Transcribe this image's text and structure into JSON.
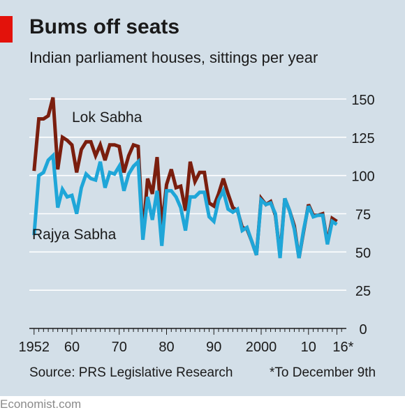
{
  "brand": "Economist.com",
  "source": "Source: PRS Legislative Research",
  "footnote": "*To December 9th",
  "colors": {
    "background": "#d3dfe8",
    "accent": "#e3120b",
    "lok_sabha": "#7a1e0e",
    "rajya_sabha": "#1fa6d8",
    "axis": "#1a1a1a",
    "grid": "#ffffff"
  },
  "chart_data": {
    "type": "line",
    "title": "Bums off seats",
    "subtitle": "Indian parliament houses, sittings per year",
    "xlabel": "",
    "ylabel": "",
    "xlim": [
      1951,
      2018
    ],
    "ylim": [
      0,
      150
    ],
    "yticks": [
      0,
      25,
      50,
      75,
      100,
      125,
      150
    ],
    "y_axis_side": "right",
    "xticks": [
      {
        "value": 1952,
        "label": "1952"
      },
      {
        "value": 1960,
        "label": "60"
      },
      {
        "value": 1970,
        "label": "70"
      },
      {
        "value": 1980,
        "label": "80"
      },
      {
        "value": 1990,
        "label": "90"
      },
      {
        "value": 2000,
        "label": "2000"
      },
      {
        "value": 2010,
        "label": "10"
      },
      {
        "value": 2016,
        "label": "16*"
      }
    ],
    "grid": "horizontal",
    "legend": "inline labels",
    "x": [
      1952,
      1953,
      1954,
      1955,
      1956,
      1957,
      1958,
      1959,
      1960,
      1961,
      1962,
      1963,
      1964,
      1965,
      1966,
      1967,
      1968,
      1969,
      1970,
      1971,
      1972,
      1973,
      1974,
      1975,
      1976,
      1977,
      1978,
      1979,
      1980,
      1981,
      1982,
      1983,
      1984,
      1985,
      1986,
      1987,
      1988,
      1989,
      1990,
      1991,
      1992,
      1993,
      1994,
      1995,
      1996,
      1997,
      1998,
      1999,
      2000,
      2001,
      2002,
      2003,
      2004,
      2005,
      2006,
      2007,
      2008,
      2009,
      2010,
      2011,
      2012,
      2013,
      2014,
      2015,
      2016
    ],
    "series": [
      {
        "name": "Lok Sabha",
        "values": [
          103,
          137,
          137,
          139,
          151,
          104,
          125,
          123,
          120,
          102,
          117,
          122,
          122,
          113,
          120,
          110,
          120,
          120,
          119,
          102,
          113,
          120,
          119,
          61,
          98,
          88,
          112,
          66,
          94,
          104,
          92,
          93,
          77,
          109,
          96,
          102,
          102,
          82,
          80,
          88,
          98,
          88,
          79,
          77,
          66,
          65,
          57,
          48,
          85,
          81,
          83,
          74,
          48,
          85,
          77,
          67,
          46,
          64,
          81,
          74,
          74,
          75,
          56,
          72,
          70
        ]
      },
      {
        "name": "Rajya Sabha",
        "values": [
          61,
          100,
          102,
          110,
          113,
          79,
          91,
          86,
          87,
          75,
          92,
          101,
          98,
          97,
          109,
          92,
          102,
          101,
          106,
          90,
          101,
          106,
          109,
          58,
          86,
          71,
          90,
          54,
          90,
          90,
          86,
          79,
          64,
          86,
          86,
          89,
          89,
          73,
          70,
          84,
          90,
          78,
          76,
          78,
          64,
          66,
          57,
          48,
          84,
          81,
          82,
          75,
          46,
          85,
          77,
          65,
          46,
          65,
          80,
          73,
          74,
          74,
          55,
          70,
          68
        ]
      }
    ]
  }
}
